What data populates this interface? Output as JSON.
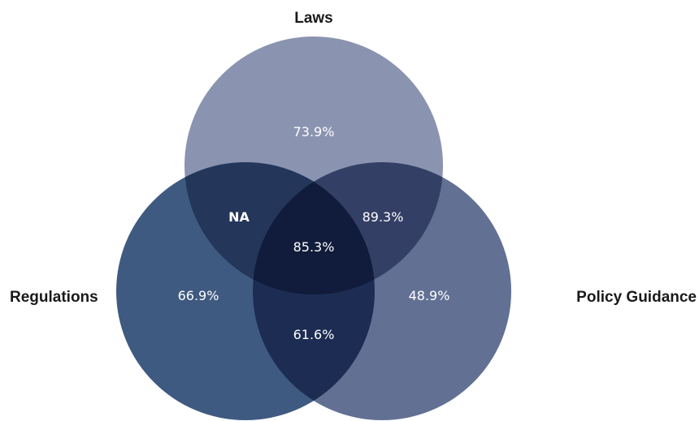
{
  "sets": {
    "top": {
      "label": "Laws",
      "color": "#8a93b0"
    },
    "left": {
      "label": "Regulations",
      "color": "#3f5a80"
    },
    "right": {
      "label": "Policy Guidance",
      "color": "#627094"
    }
  },
  "regions": {
    "laws_only": "73.9%",
    "regulations_only": "66.9%",
    "policy_only": "48.9%",
    "laws_regulations": "NA",
    "laws_policy": "89.3%",
    "regulations_policy": "61.6%",
    "all_three": "85.3%"
  },
  "colors": {
    "laws_regulations": "#24365a",
    "laws_policy": "#343f66",
    "regulations_policy": "#1c2c52",
    "all_three": "#111b3b"
  }
}
